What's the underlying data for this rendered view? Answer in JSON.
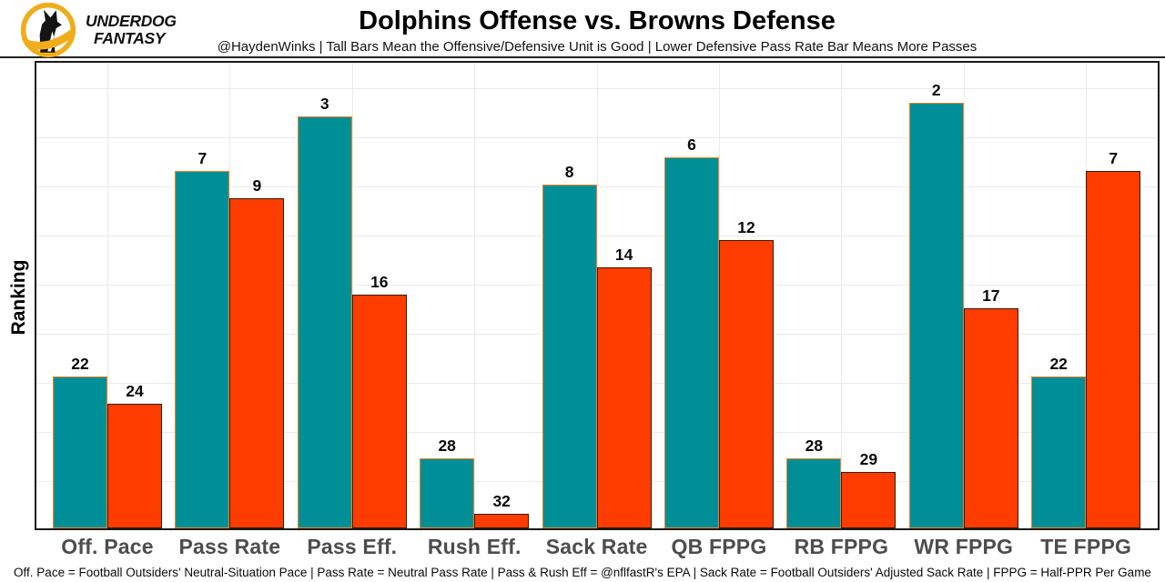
{
  "header": {
    "brand": {
      "line1": "UNDERDOG",
      "line2": "FANTASY",
      "gold": "#F0AD1B",
      "ink": "#141414"
    },
    "title": "Dolphins Offense vs. Browns Defense",
    "subtitle": "@HaydenWinks | Tall Bars Mean the Offensive/Defensive Unit is Good | Lower Defensive Pass Rate Bar Means More Passes"
  },
  "chart_data": {
    "type": "bar",
    "title": "Dolphins Offense vs. Browns Defense",
    "xlabel": "",
    "ylabel": "Ranking",
    "categories": [
      "Off. Pace",
      "Pass Rate",
      "Pass Eff.",
      "Rush Eff.",
      "Sack Rate",
      "QB FPPG",
      "RB FPPG",
      "WR FPPG",
      "TE FPPG"
    ],
    "series": [
      {
        "name": "Dolphins Offense",
        "fill": "#008E97",
        "stroke": "#F58220",
        "values": [
          22,
          7,
          3,
          28,
          8,
          6,
          28,
          2,
          22
        ]
      },
      {
        "name": "Browns Defense",
        "fill": "#FF3C00",
        "stroke": "#311D00",
        "values": [
          24,
          9,
          16,
          32,
          14,
          12,
          29,
          17,
          7
        ]
      }
    ],
    "value_labels_shown": true,
    "axis_note": "rank 1 = best of 32; taller bar = better rank; bar height ~ (33 - rank)",
    "ylim": [
      0,
      33
    ],
    "grid": true,
    "legend_position": "none"
  },
  "footer": {
    "text": "Off. Pace = Football Outsiders' Neutral-Situation Pace | Pass Rate = Neutral Pass Rate | Pass & Rush Eff = @nflfastR's EPA | Sack Rate = Football Outsiders' Adjusted Sack Rate | FPPG = Half-PPR Per Game"
  }
}
